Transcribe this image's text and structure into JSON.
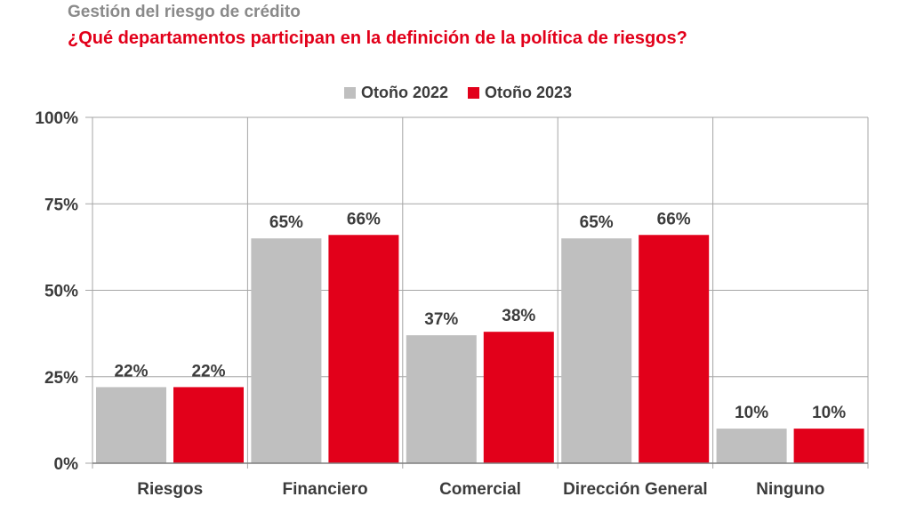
{
  "header": {
    "title": "Gestión del riesgo de crédito",
    "subtitle": "¿Qué departamentos participan en la definición de la política de riesgos?"
  },
  "colors": {
    "series_2022": "#bfbfbf",
    "series_2023": "#e2001a",
    "text": "#3c3c3c",
    "grid": "#a6a6a6"
  },
  "chart_data": {
    "type": "bar",
    "categories": [
      "Riesgos",
      "Financiero",
      "Comercial",
      "Dirección General",
      "Ninguno"
    ],
    "series": [
      {
        "name": "Otoño 2022",
        "values": [
          22,
          65,
          37,
          65,
          10
        ],
        "labels": [
          "22%",
          "65%",
          "37%",
          "65%",
          "10%"
        ]
      },
      {
        "name": "Otoño 2023",
        "values": [
          22,
          66,
          38,
          66,
          10
        ],
        "labels": [
          "22%",
          "66%",
          "38%",
          "66%",
          "10%"
        ]
      }
    ],
    "yticks": [
      "0%",
      "25%",
      "50%",
      "75%",
      "100%"
    ],
    "ylim": [
      0,
      100
    ],
    "grid": true,
    "legend": "top-center"
  }
}
